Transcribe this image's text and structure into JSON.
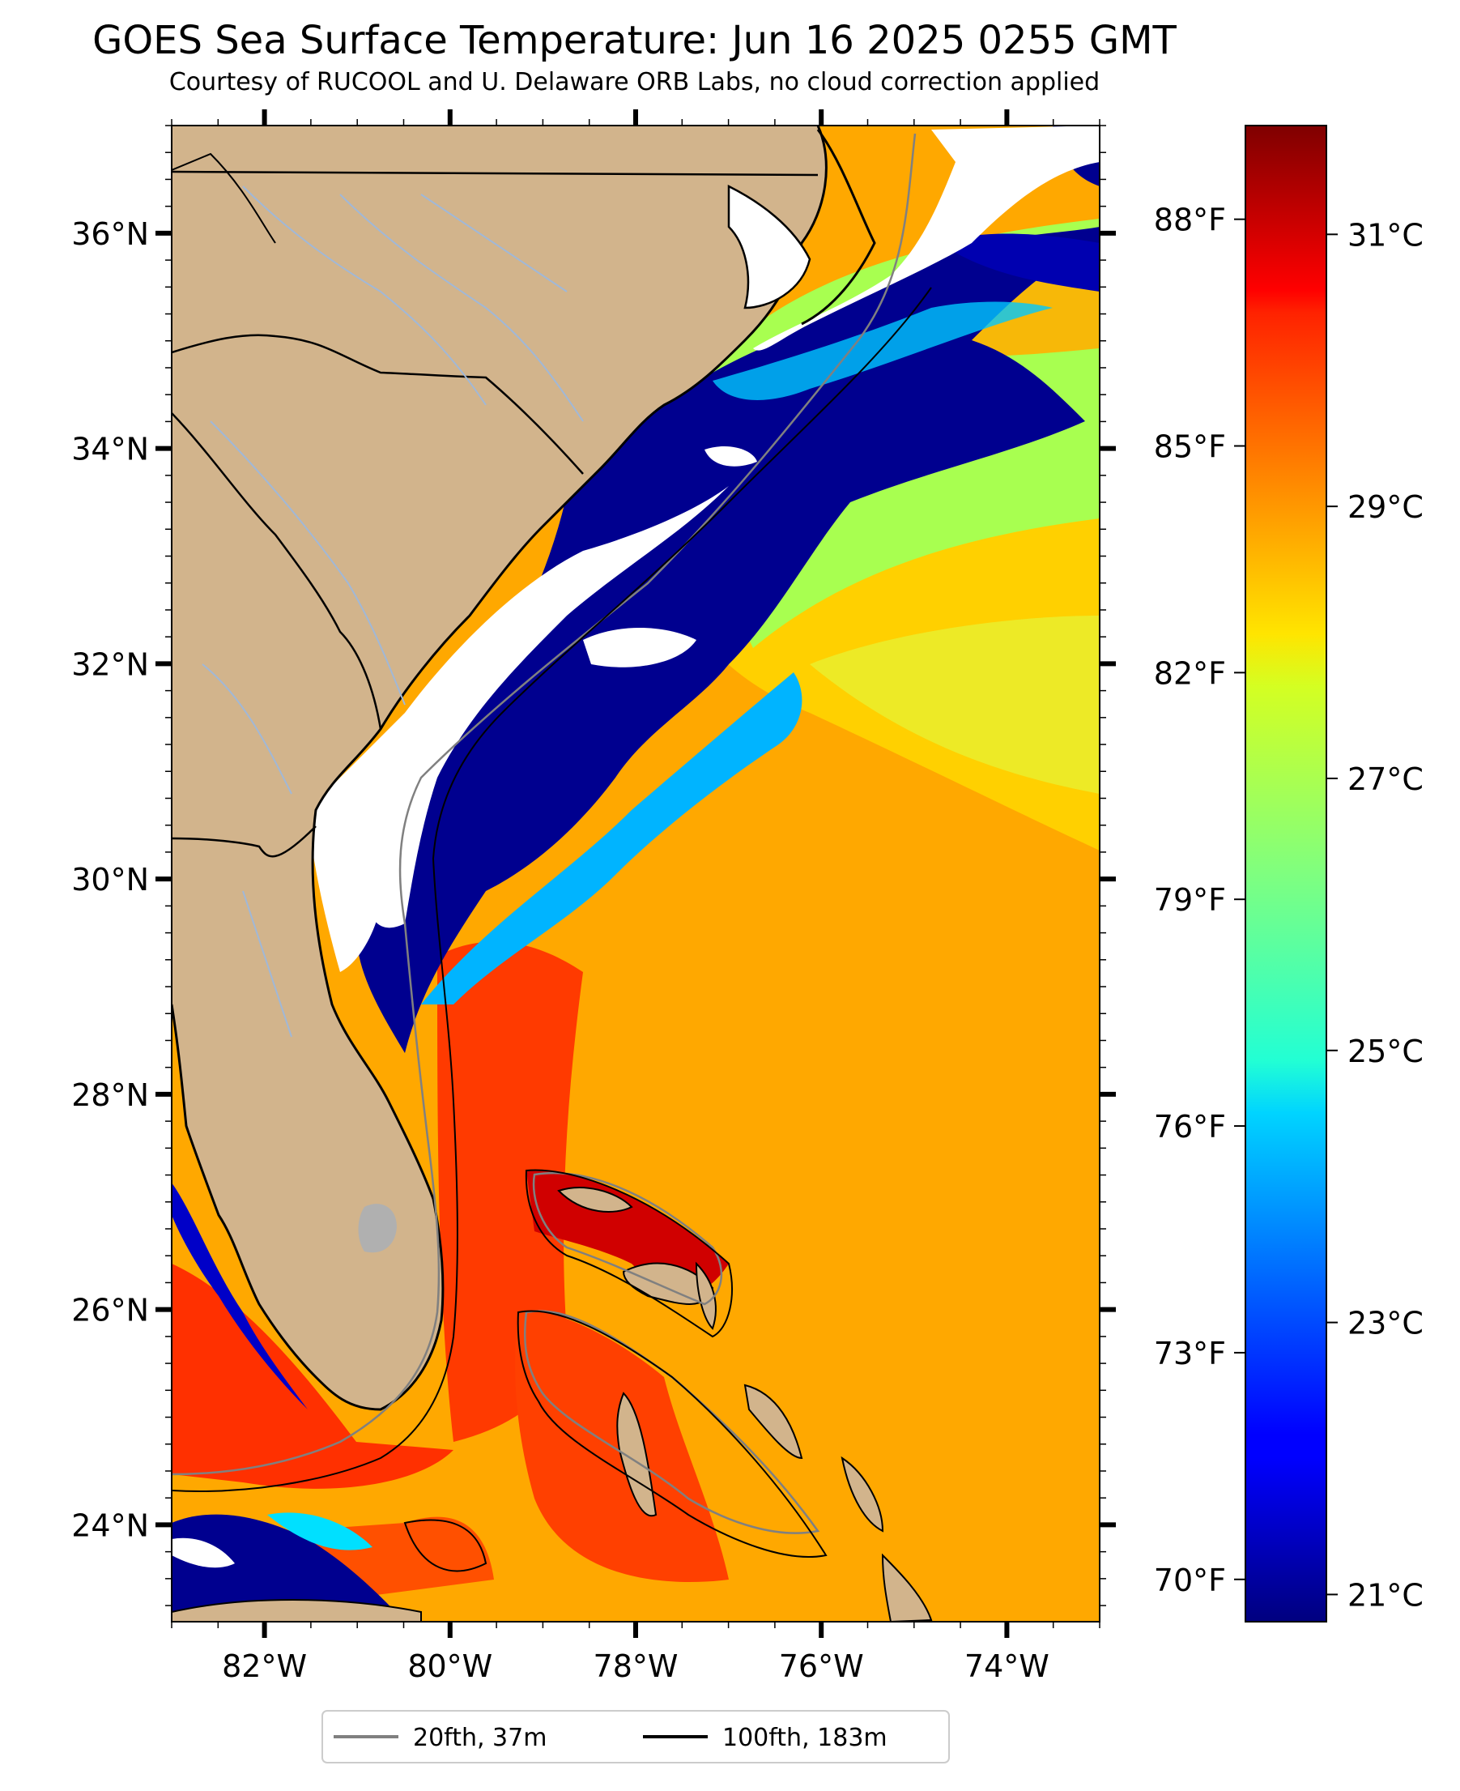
{
  "title": "GOES Sea Surface Temperature: Jun 16 2025 0255 GMT",
  "subtitle": "Courtesy of RUCOOL and U. Delaware ORB Labs, no cloud correction applied",
  "map": {
    "lat_ticks": [
      {
        "value": 36,
        "label": "36°N"
      },
      {
        "value": 34,
        "label": "34°N"
      },
      {
        "value": 32,
        "label": "32°N"
      },
      {
        "value": 30,
        "label": "30°N"
      },
      {
        "value": 28,
        "label": "28°N"
      },
      {
        "value": 26,
        "label": "26°N"
      },
      {
        "value": 24,
        "label": "24°N"
      }
    ],
    "lon_ticks": [
      {
        "value": -82,
        "label": "82°W"
      },
      {
        "value": -80,
        "label": "80°W"
      },
      {
        "value": -78,
        "label": "78°W"
      },
      {
        "value": -76,
        "label": "76°W"
      },
      {
        "value": -74,
        "label": "74°W"
      }
    ],
    "lon_range": [
      -83.0,
      -73.0
    ],
    "lat_range": [
      23.1,
      37.0
    ],
    "land_color": "#d2b48c",
    "cloud_color": "#ffffff",
    "state_border_color": "#000000",
    "river_color": "#a0b8d8"
  },
  "colorbar": {
    "colormap": "jet",
    "celsius_range": [
      20.8,
      31.8
    ],
    "celsius_ticks": [
      {
        "value": 31,
        "label": "31°C"
      },
      {
        "value": 29,
        "label": "29°C"
      },
      {
        "value": 27,
        "label": "27°C"
      },
      {
        "value": 25,
        "label": "25°C"
      },
      {
        "value": 23,
        "label": "23°C"
      },
      {
        "value": 21,
        "label": "21°C"
      }
    ],
    "fahrenheit_ticks": [
      {
        "value": 88,
        "label": "88°F"
      },
      {
        "value": 85,
        "label": "85°F"
      },
      {
        "value": 82,
        "label": "82°F"
      },
      {
        "value": 79,
        "label": "79°F"
      },
      {
        "value": 76,
        "label": "76°F"
      },
      {
        "value": 73,
        "label": "73°F"
      },
      {
        "value": 70,
        "label": "70°F"
      }
    ]
  },
  "legend": {
    "items": [
      {
        "label": "20fth, 37m",
        "color": "#808080"
      },
      {
        "label": "100fth, 183m",
        "color": "#000000"
      }
    ]
  }
}
